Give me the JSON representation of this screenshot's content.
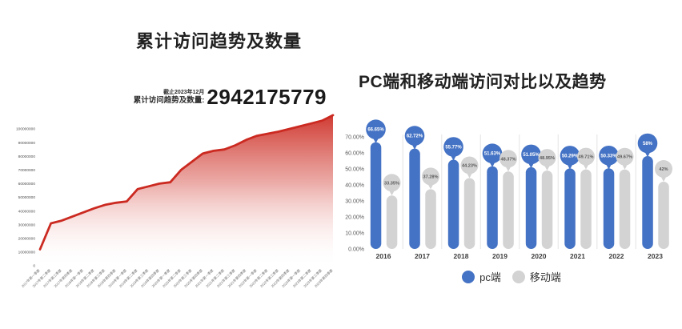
{
  "left_chart": {
    "title": "累计访问趋势及数量",
    "asof_label": "截止2023年12月",
    "total_label": "累计访问趋势及数量:",
    "total_value": "2942175779",
    "colors": {
      "line": "#cb2a21",
      "axis_text": "#4f4f4f",
      "tick_text": "#6b6b6b"
    }
  },
  "right_chart": {
    "title": "PC端和移动端访问对比以及趋势",
    "colors": {
      "pc": "#4472c4",
      "mobile": "#d3d3d3",
      "pc_bubble_text": "#ffffff",
      "mobile_bubble_text": "#595959",
      "separator": "#e8e8e8",
      "axis_text": "#595959",
      "year_text": "#3d3d3d"
    },
    "legend": [
      {
        "label": "pc端"
      },
      {
        "label": "移动端"
      }
    ]
  },
  "chart_data": [
    {
      "type": "area",
      "title": "累计访问趋势及数量",
      "annotation": "截止2023年12月 累计访问趋势及数量: 2942175779",
      "categories": [
        "2017年第一季度",
        "2017年第二季度",
        "2017年第三季度",
        "2017年第四季度",
        "2018年第一季度",
        "2018年第二季度",
        "2018年第三季度",
        "2018年第四季度",
        "2019年第一季度",
        "2019年第二季度",
        "2019年第三季度",
        "2019年第四季度",
        "2020年第一季度",
        "2020年第二季度",
        "2020年第三季度",
        "2020年第四季度",
        "2021年第一季度",
        "2021年第二季度",
        "2021年第三季度",
        "2021年第四季度",
        "2022年第一季度",
        "2022年第二季度",
        "2022年第三季度",
        "2022年第四季度",
        "2023年第一季度",
        "2023年第二季度",
        "2023年第三季度",
        "2023年第四季度"
      ],
      "values": [
        12000000,
        31000000,
        33000000,
        36000000,
        39000000,
        42000000,
        44500000,
        46000000,
        47000000,
        56000000,
        58000000,
        60000000,
        61000000,
        70000000,
        76000000,
        82000000,
        84000000,
        85000000,
        88000000,
        92000000,
        95000000,
        96500000,
        98000000,
        100000000,
        102000000,
        104000000,
        106000000,
        110000000
      ],
      "ylim": [
        0,
        100000000
      ],
      "yticks": [
        0,
        10000000,
        20000000,
        30000000,
        40000000,
        50000000,
        60000000,
        70000000,
        80000000,
        90000000,
        100000000
      ],
      "grid": false,
      "xlabel": "",
      "ylabel": ""
    },
    {
      "type": "bar",
      "title": "PC端和移动端访问对比以及趋势",
      "categories": [
        "2016",
        "2017",
        "2018",
        "2019",
        "2020",
        "2021",
        "2022",
        "2023"
      ],
      "series": [
        {
          "name": "pc端",
          "values": [
            66.65,
            62.72,
            55.77,
            51.63,
            51.05,
            50.29,
            50.33,
            58
          ],
          "labels": [
            "66.65%",
            "62.72%",
            "55.77%",
            "51.63%",
            "51.05%",
            "50.29%",
            "50.33%",
            "58%"
          ]
        },
        {
          "name": "移动端",
          "values": [
            33.35,
            37.28,
            44.23,
            48.37,
            48.95,
            49.71,
            49.67,
            42
          ],
          "labels": [
            "33.35%",
            "37.28%",
            "44.23%",
            "48.37%",
            "48.95%",
            "49.71%",
            "49.67%",
            "42%"
          ]
        }
      ],
      "ylim": [
        0,
        70
      ],
      "ytick_labels": [
        "0.00%",
        "10.00%",
        "20.00%",
        "30.00%",
        "40.00%",
        "50.00%",
        "60.00%",
        "70.00%"
      ],
      "grid": false,
      "legend_position": "bottom"
    }
  ]
}
